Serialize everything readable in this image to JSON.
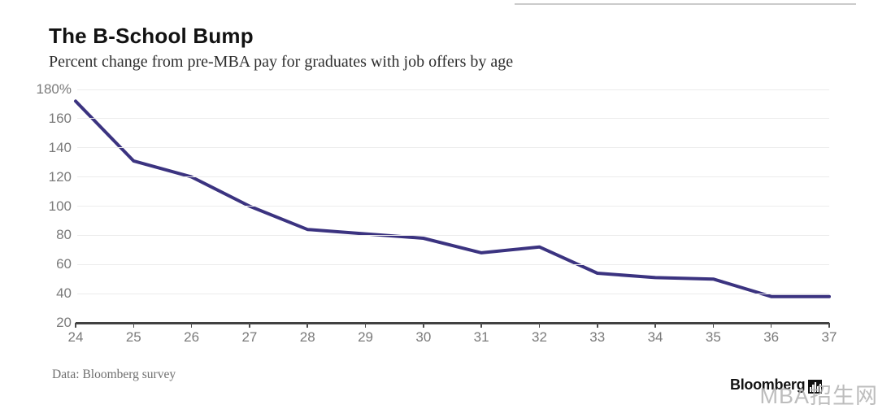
{
  "header": {
    "title": "The B-School Bump",
    "subtitle": "Percent change from pre-MBA pay for graduates with job offers by age"
  },
  "chart_data": {
    "type": "line",
    "title": "The B-School Bump",
    "subtitle": "Percent change from pre-MBA pay for graduates with job offers by age",
    "x": [
      24,
      25,
      26,
      27,
      28,
      29,
      30,
      31,
      32,
      33,
      34,
      35,
      36,
      37
    ],
    "series": [
      {
        "name": "Percent change from pre-MBA pay",
        "values": [
          172,
          131,
          120,
          100,
          84,
          81,
          78,
          68,
          72,
          54,
          51,
          50,
          38,
          38
        ]
      }
    ],
    "xlim": [
      24,
      37
    ],
    "ylim": [
      20,
      180
    ],
    "y_ticks": [
      {
        "value": 180,
        "label": "180%"
      },
      {
        "value": 160,
        "label": "160"
      },
      {
        "value": 140,
        "label": "140"
      },
      {
        "value": 120,
        "label": "120"
      },
      {
        "value": 100,
        "label": "100"
      },
      {
        "value": 80,
        "label": "80"
      },
      {
        "value": 60,
        "label": "60"
      },
      {
        "value": 40,
        "label": "40"
      },
      {
        "value": 20,
        "label": "20"
      }
    ],
    "x_tick_labels": [
      "24",
      "25",
      "26",
      "27",
      "28",
      "29",
      "30",
      "31",
      "32",
      "33",
      "34",
      "35",
      "36",
      "37"
    ],
    "grid": "horizontal",
    "legend": "none",
    "line_color": "#3b3380"
  },
  "footer": {
    "source": "Data: Bloomberg survey",
    "brand": "Bloomberg"
  },
  "watermark": {
    "text": "MBA招生网"
  },
  "colors": {
    "line": "#3b3380",
    "gridline": "#ececec",
    "axis": "#414141",
    "tick_text": "#7a7a7a",
    "top_rule": "#cbcbcb",
    "watermark": "#b2b2b2"
  }
}
